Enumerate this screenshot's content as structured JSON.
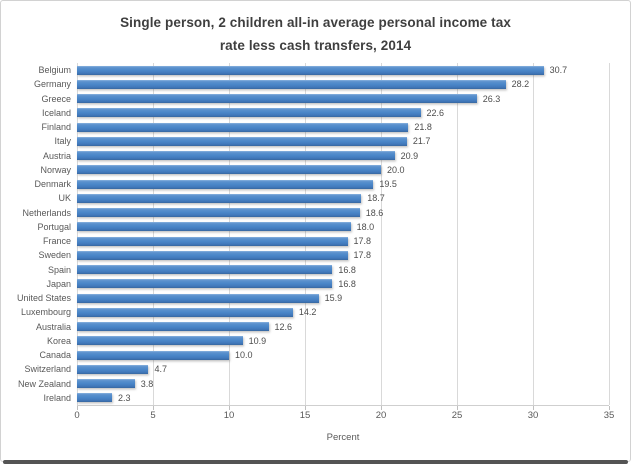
{
  "title": "Single person, 2 children all-in average personal income tax\nrate less cash transfers, 2014",
  "chart_data": {
    "type": "bar",
    "orientation": "horizontal",
    "title": "Single person, 2 children all-in average personal income tax rate less cash transfers, 2014",
    "categories": [
      "Belgium",
      "Germany",
      "Greece",
      "Iceland",
      "Finland",
      "Italy",
      "Austria",
      "Norway",
      "Denmark",
      "UK",
      "Netherlands",
      "Portugal",
      "France",
      "Sweden",
      "Spain",
      "Japan",
      "United States",
      "Luxembourg",
      "Australia",
      "Korea",
      "Canada",
      "Switzerland",
      "New Zealand",
      "Ireland"
    ],
    "values": [
      30.7,
      28.2,
      26.3,
      22.6,
      21.8,
      21.7,
      20.9,
      20.0,
      19.5,
      18.7,
      18.6,
      18.0,
      17.8,
      17.8,
      16.8,
      16.8,
      15.9,
      14.2,
      12.6,
      10.9,
      10.0,
      4.7,
      3.8,
      2.3
    ],
    "xlabel": "Percent",
    "ylabel": "",
    "xlim": [
      0,
      35
    ],
    "xticks": [
      0,
      5,
      10,
      15,
      20,
      25,
      30,
      35
    ],
    "grid": "vertical",
    "legend": "none",
    "value_labels_shown": true,
    "colors": {
      "bar": "#4a86c8",
      "bar_gradient_top": "#8ab3de",
      "bar_gradient_bottom": "#38689f",
      "gridline": "#d9d9d9",
      "title_text": "#3f3f3f",
      "label_text": "#595959",
      "frame_border": "#d2d2d2",
      "frame_bottom_shadow": "#545454"
    }
  }
}
